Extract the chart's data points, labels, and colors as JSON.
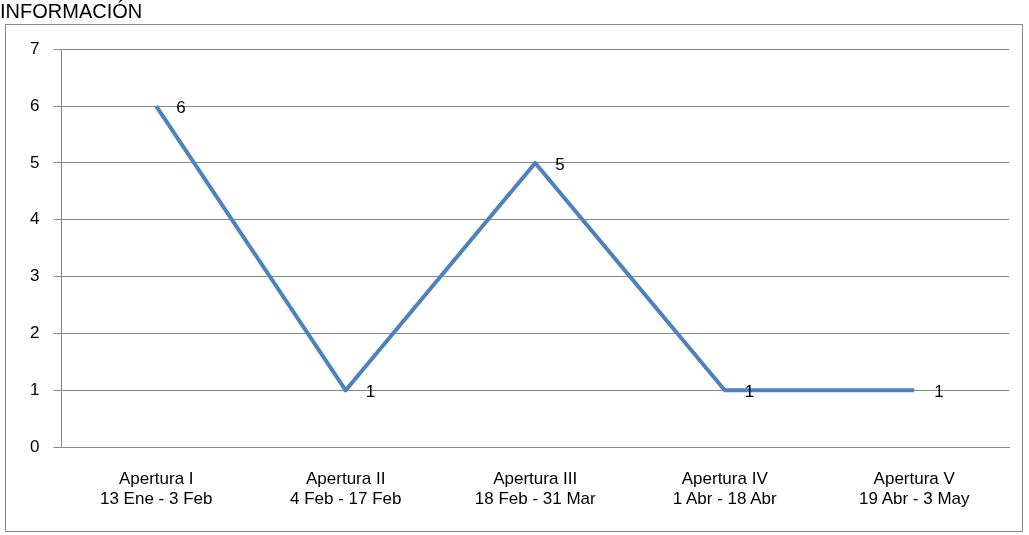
{
  "chart_data": {
    "type": "line",
    "title": "INFORMACIÓN",
    "categories": [
      "Apertura I\n13 Ene - 3 Feb",
      "Apertura II\n4 Feb - 17 Feb",
      "Apertura III\n18 Feb - 31 Mar",
      "Apertura IV\n1 Abr - 18 Abr",
      "Apertura V\n19 Abr - 3 May"
    ],
    "series": [
      {
        "color": "#4f81bd",
        "values": [
          6,
          1,
          5,
          1,
          1
        ]
      }
    ],
    "ylim": [
      0,
      7
    ],
    "yticks": [
      0,
      1,
      2,
      3,
      4,
      5,
      6,
      7
    ],
    "grid": "y",
    "data_labels": true,
    "marker": "none",
    "legend": false
  }
}
